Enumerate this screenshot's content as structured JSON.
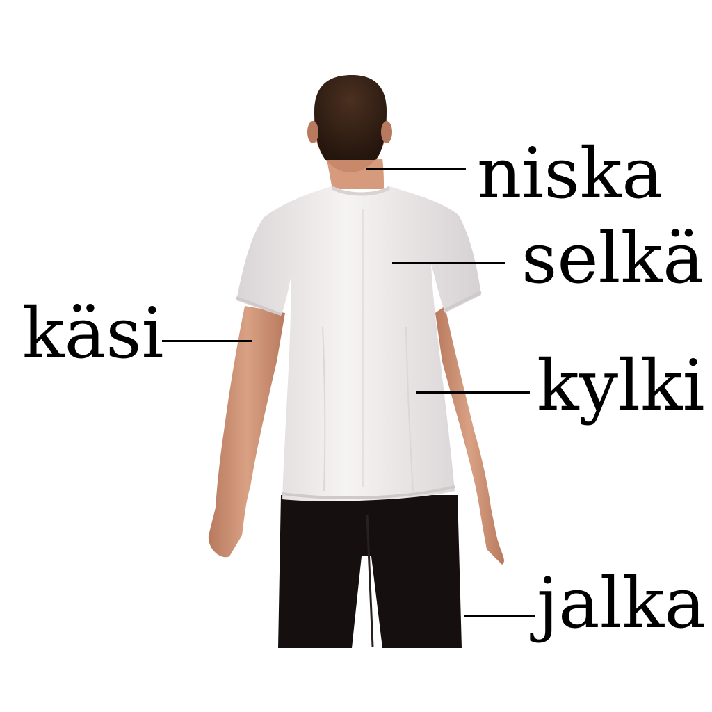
{
  "labels": {
    "niska": "niska",
    "selka": "selkä",
    "kasi": "käsi",
    "kylki": "kylki",
    "jalka": "jalka"
  },
  "colors": {
    "background": "#ffffff",
    "text": "#000000",
    "shirt": "#efeced",
    "shorts": "#150f0f",
    "skin": "#c98f72",
    "hair": "#3a2418"
  }
}
